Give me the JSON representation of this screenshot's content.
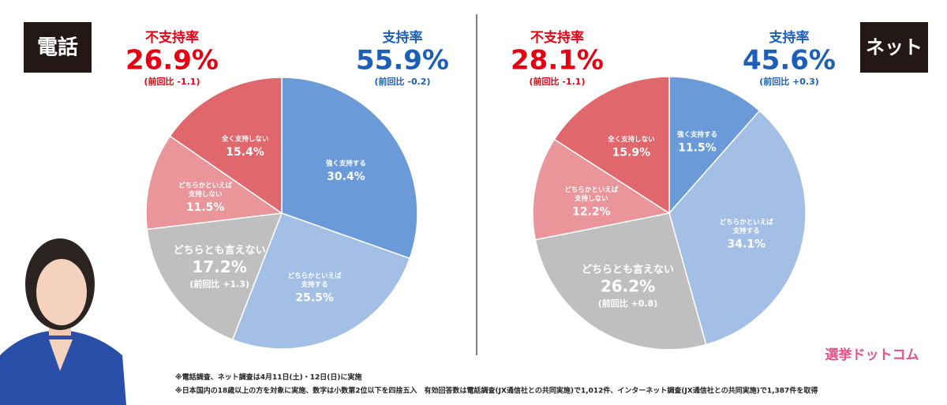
{
  "chart_data": [
    {
      "type": "pie",
      "label": "電話",
      "categories": [
        [
          "強く支持する"
        ],
        [
          "どちらかといえば",
          "支持する"
        ],
        [
          "どちらとも言えない"
        ],
        [
          "どちらかといえば",
          "支持しない"
        ],
        [
          "全く支持しない"
        ]
      ],
      "values": [
        30.4,
        25.5,
        17.2,
        11.5,
        15.4
      ],
      "value_labels": [
        "30.4%",
        "25.5%",
        "17.2%",
        "11.5%",
        "15.4%"
      ],
      "slice_notes": [
        null,
        null,
        "(前回比 +1.3)",
        null,
        null
      ],
      "colors": [
        "#6a9bd8",
        "#a3bfe6",
        "#bfbfbf",
        "#e9959a",
        "#e0676b"
      ],
      "disapproval": {
        "label": "不支持率",
        "value": 26.9,
        "value_label": "26.9%",
        "change": "(前回比 -1.1)"
      },
      "approval": {
        "label": "支持率",
        "value": 55.9,
        "value_label": "55.9%",
        "change": "(前回比 -0.2)"
      }
    },
    {
      "type": "pie",
      "label": "ネット",
      "categories": [
        [
          "強く支持する"
        ],
        [
          "どちらかといえば",
          "支持する"
        ],
        [
          "どちらとも言えない"
        ],
        [
          "どちらかといえば",
          "支持しない"
        ],
        [
          "全く支持しない"
        ]
      ],
      "values": [
        11.5,
        34.1,
        26.2,
        12.2,
        15.9
      ],
      "value_labels": [
        "11.5%",
        "34.1%",
        "26.2%",
        "12.2%",
        "15.9%"
      ],
      "slice_notes": [
        null,
        null,
        "(前回比 +0.8)",
        null,
        null
      ],
      "colors": [
        "#6a9bd8",
        "#a3bfe6",
        "#bfbfbf",
        "#e9959a",
        "#e0676b"
      ],
      "disapproval": {
        "label": "不支持率",
        "value": 28.1,
        "value_label": "28.1%",
        "change": "(前回比 -1.1)"
      },
      "approval": {
        "label": "支持率",
        "value": 45.6,
        "value_label": "45.6%",
        "change": "(前回比 +0.3)"
      }
    }
  ],
  "footnotes": [
    "※電話調査、ネット調査は4月11日(土)・12日(日)に実施",
    "※日本国内の18歳以上の方を対象に実施、数字は小数第2位以下を四捨五入　有効回答数は電話調査(JX通信社との共同実施)で1,012件、インターネット調査(JX通信社との共同実施)で1,387件を取得"
  ],
  "logo": "選挙ドットコム"
}
